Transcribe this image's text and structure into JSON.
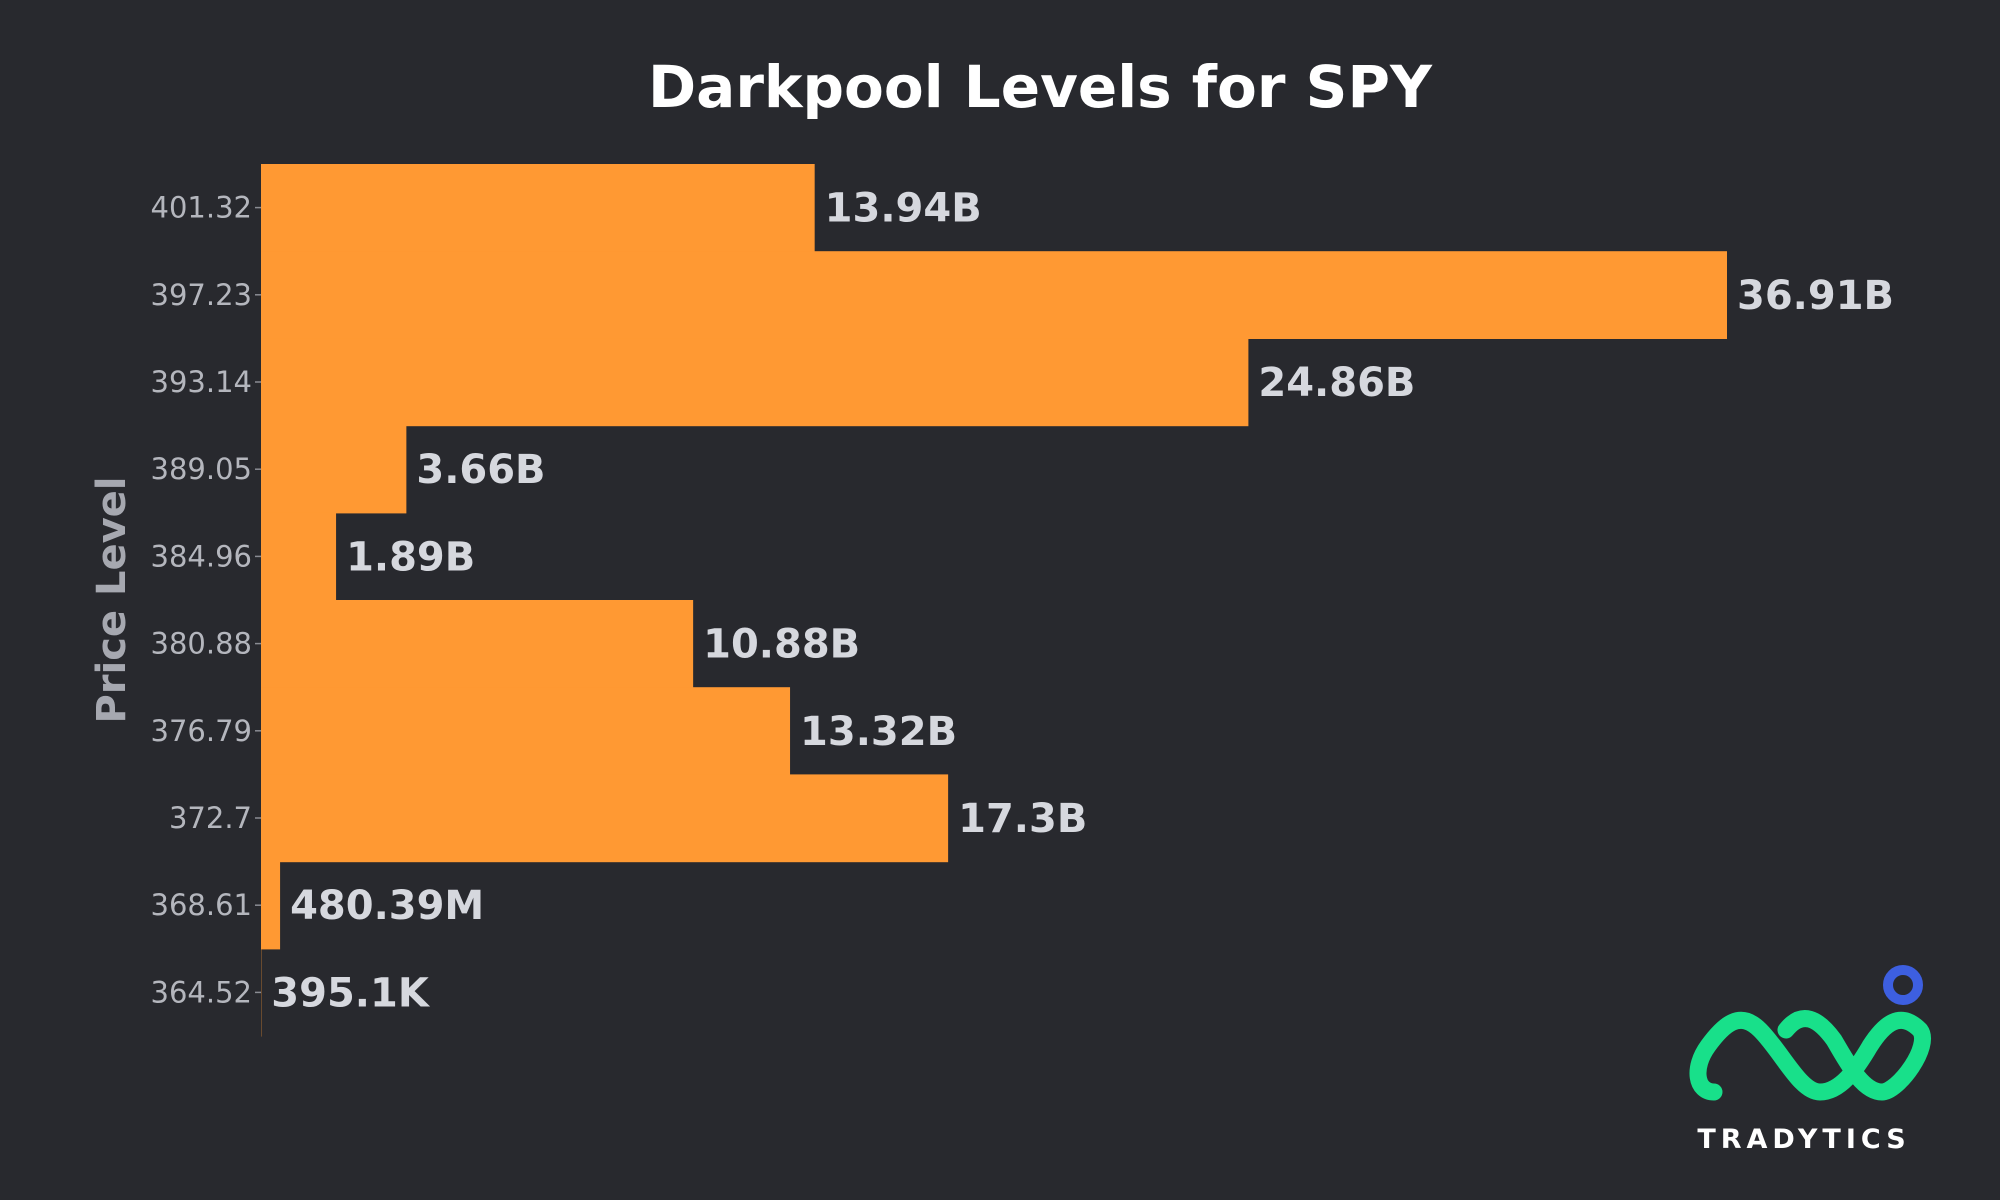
{
  "chart_data": {
    "type": "bar",
    "orientation": "horizontal",
    "title": "Darkpool Levels for SPY",
    "ylabel": "Price Level",
    "xlabel": "",
    "categories": [
      "401.32",
      "397.23",
      "393.14",
      "389.05",
      "384.96",
      "380.88",
      "376.79",
      "372.7",
      "368.61",
      "364.52"
    ],
    "values": [
      13940000000,
      36910000000,
      24860000000,
      3660000000,
      1890000000,
      10880000000,
      13320000000,
      17300000000,
      480390000,
      395100
    ],
    "value_labels": [
      "13.94B",
      "36.91B",
      "24.86B",
      "3.66B",
      "1.89B",
      "10.88B",
      "13.32B",
      "17.3B",
      "480.39M",
      "395.1K"
    ],
    "xlim": [
      0,
      36910000000
    ],
    "grid": false,
    "legend": "none",
    "bar_color": "#ff9933",
    "background": "#28292e"
  },
  "brand": {
    "name": "TRADYTICS",
    "logo_icon": "tradytics-logo-icon",
    "logo_color": "#18e08a",
    "dot_color": "#3d5fe0"
  }
}
